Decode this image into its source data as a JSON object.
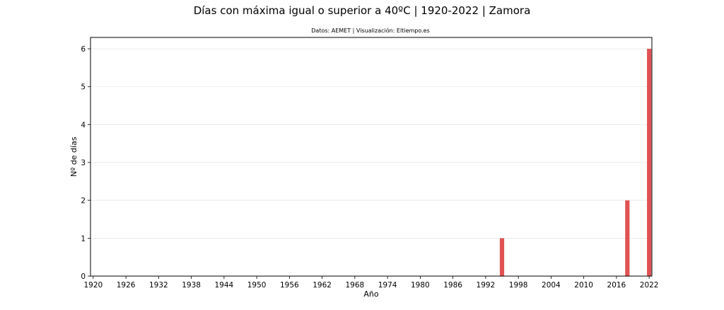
{
  "chart_data": {
    "type": "bar",
    "title": "Días con máxima igual o superior a 40ºC | 1920-2022 | Zamora",
    "subtitle": "Datos: AEMET | Visualización: Eltiempo.es",
    "xlabel": "Año",
    "ylabel": "Nº de días",
    "xlim": [
      1919.5,
      2022.5
    ],
    "ylim": [
      0,
      6.3
    ],
    "x_ticks": [
      1920,
      1926,
      1932,
      1938,
      1944,
      1950,
      1956,
      1962,
      1968,
      1974,
      1980,
      1986,
      1992,
      1998,
      2004,
      2010,
      2016,
      2022
    ],
    "y_ticks": [
      0,
      1,
      2,
      3,
      4,
      5,
      6
    ],
    "grid": "horizontal",
    "legend": "none",
    "bar_color": "#e05252",
    "x": [
      1995,
      2018,
      2022
    ],
    "values": [
      1,
      2,
      6
    ]
  }
}
